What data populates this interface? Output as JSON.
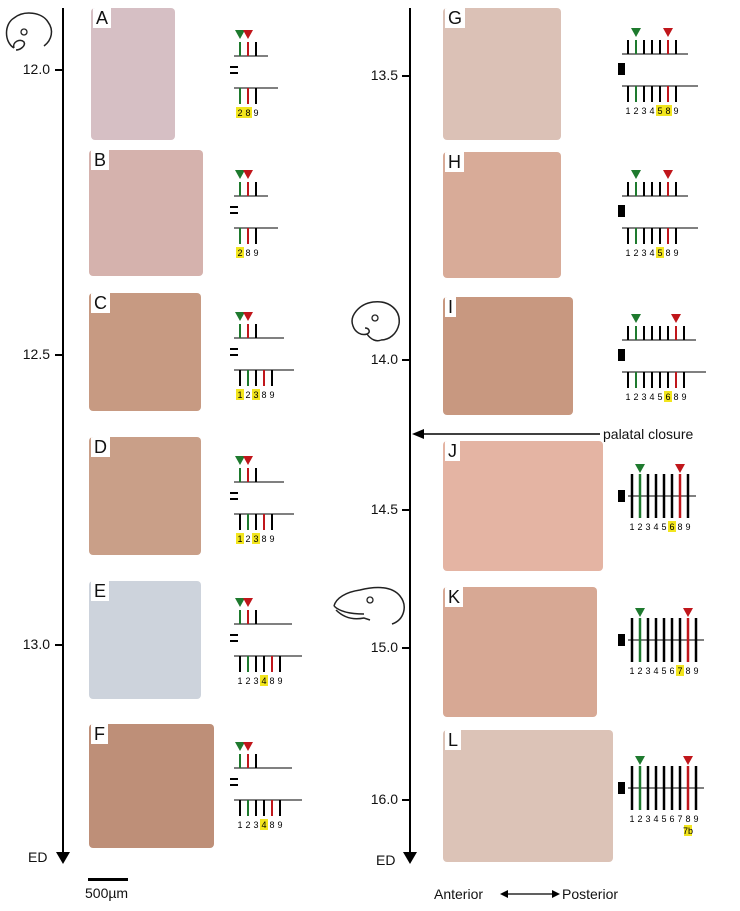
{
  "timeline_left": {
    "ticks": [
      "12.0",
      "12.5",
      "13.0"
    ],
    "end_label": "ED"
  },
  "timeline_right": {
    "ticks": [
      "13.5",
      "14.0",
      "14.5",
      "15.0",
      "16.0"
    ],
    "end_label": "ED"
  },
  "panels": [
    {
      "letter": "A",
      "numbers": [
        {
          "t": "2",
          "hl": true,
          "c": "green"
        },
        {
          "t": "8",
          "hl": true,
          "c": "red"
        },
        {
          "t": "9",
          "hl": false,
          "c": "black"
        }
      ]
    },
    {
      "letter": "B",
      "numbers": [
        {
          "t": "2",
          "hl": true,
          "c": "green"
        },
        {
          "t": "8",
          "hl": false,
          "c": "red"
        },
        {
          "t": "9",
          "hl": false,
          "c": "black"
        }
      ]
    },
    {
      "letter": "C",
      "numbers": [
        {
          "t": "1",
          "hl": true,
          "c": "black"
        },
        {
          "t": "2",
          "hl": false,
          "c": "green"
        },
        {
          "t": "3",
          "hl": true,
          "c": "black"
        },
        {
          "t": "8",
          "hl": false,
          "c": "red"
        },
        {
          "t": "9",
          "hl": false,
          "c": "black"
        }
      ]
    },
    {
      "letter": "D",
      "numbers": [
        {
          "t": "1",
          "hl": true,
          "c": "black"
        },
        {
          "t": "2",
          "hl": false,
          "c": "green"
        },
        {
          "t": "3",
          "hl": true,
          "c": "black"
        },
        {
          "t": "8",
          "hl": false,
          "c": "red"
        },
        {
          "t": "9",
          "hl": false,
          "c": "black"
        }
      ]
    },
    {
      "letter": "E",
      "numbers": [
        {
          "t": "1",
          "hl": false,
          "c": "black"
        },
        {
          "t": "2",
          "hl": false,
          "c": "green"
        },
        {
          "t": "3",
          "hl": false,
          "c": "black"
        },
        {
          "t": "4",
          "hl": true,
          "c": "black"
        },
        {
          "t": "8",
          "hl": false,
          "c": "red"
        },
        {
          "t": "9",
          "hl": false,
          "c": "black"
        }
      ]
    },
    {
      "letter": "F",
      "numbers": [
        {
          "t": "1",
          "hl": false,
          "c": "black"
        },
        {
          "t": "2",
          "hl": false,
          "c": "green"
        },
        {
          "t": "3",
          "hl": false,
          "c": "black"
        },
        {
          "t": "4",
          "hl": true,
          "c": "black"
        },
        {
          "t": "8",
          "hl": false,
          "c": "red"
        },
        {
          "t": "9",
          "hl": false,
          "c": "black"
        }
      ]
    },
    {
      "letter": "G",
      "numbers": [
        {
          "t": "1",
          "hl": false,
          "c": "black"
        },
        {
          "t": "2",
          "hl": false,
          "c": "green"
        },
        {
          "t": "3",
          "hl": false,
          "c": "black"
        },
        {
          "t": "4",
          "hl": false,
          "c": "black"
        },
        {
          "t": "5",
          "hl": true,
          "c": "black"
        },
        {
          "t": "8",
          "hl": true,
          "c": "red"
        },
        {
          "t": "9",
          "hl": false,
          "c": "black"
        }
      ]
    },
    {
      "letter": "H",
      "numbers": [
        {
          "t": "1",
          "hl": false,
          "c": "black"
        },
        {
          "t": "2",
          "hl": false,
          "c": "green"
        },
        {
          "t": "3",
          "hl": false,
          "c": "black"
        },
        {
          "t": "4",
          "hl": false,
          "c": "black"
        },
        {
          "t": "5",
          "hl": true,
          "c": "black"
        },
        {
          "t": "8",
          "hl": false,
          "c": "red"
        },
        {
          "t": "9",
          "hl": false,
          "c": "black"
        }
      ]
    },
    {
      "letter": "I",
      "numbers": [
        {
          "t": "1",
          "hl": false,
          "c": "black"
        },
        {
          "t": "2",
          "hl": false,
          "c": "green"
        },
        {
          "t": "3",
          "hl": false,
          "c": "black"
        },
        {
          "t": "4",
          "hl": false,
          "c": "black"
        },
        {
          "t": "5",
          "hl": false,
          "c": "black"
        },
        {
          "t": "6",
          "hl": true,
          "c": "black"
        },
        {
          "t": "8",
          "hl": false,
          "c": "red"
        },
        {
          "t": "9",
          "hl": false,
          "c": "black"
        }
      ]
    },
    {
      "letter": "J",
      "numbers": [
        {
          "t": "1",
          "hl": false,
          "c": "black"
        },
        {
          "t": "2",
          "hl": false,
          "c": "green"
        },
        {
          "t": "3",
          "hl": false,
          "c": "black"
        },
        {
          "t": "4",
          "hl": false,
          "c": "black"
        },
        {
          "t": "5",
          "hl": false,
          "c": "black"
        },
        {
          "t": "6",
          "hl": true,
          "c": "black"
        },
        {
          "t": "8",
          "hl": false,
          "c": "red"
        },
        {
          "t": "9",
          "hl": false,
          "c": "black"
        }
      ]
    },
    {
      "letter": "K",
      "numbers": [
        {
          "t": "1",
          "hl": false,
          "c": "black"
        },
        {
          "t": "2",
          "hl": false,
          "c": "green"
        },
        {
          "t": "3",
          "hl": false,
          "c": "black"
        },
        {
          "t": "4",
          "hl": false,
          "c": "black"
        },
        {
          "t": "5",
          "hl": false,
          "c": "black"
        },
        {
          "t": "6",
          "hl": false,
          "c": "black"
        },
        {
          "t": "7",
          "hl": true,
          "c": "black"
        },
        {
          "t": "8",
          "hl": false,
          "c": "red"
        },
        {
          "t": "9",
          "hl": false,
          "c": "black"
        }
      ]
    },
    {
      "letter": "L",
      "numbers": [
        {
          "t": "1",
          "hl": false,
          "c": "black"
        },
        {
          "t": "2",
          "hl": false,
          "c": "green"
        },
        {
          "t": "3",
          "hl": false,
          "c": "black"
        },
        {
          "t": "4",
          "hl": false,
          "c": "black"
        },
        {
          "t": "5",
          "hl": false,
          "c": "black"
        },
        {
          "t": "6",
          "hl": false,
          "c": "black"
        },
        {
          "t": "7",
          "hl": false,
          "c": "black"
        },
        {
          "t": "8",
          "hl": false,
          "c": "red"
        },
        {
          "t": "9",
          "hl": false,
          "c": "black"
        }
      ],
      "extra": "7b"
    }
  ],
  "callout": "palatal closure",
  "scale_bar": "500µm",
  "direction": {
    "left": "Anterior",
    "right": "Posterior"
  },
  "colors": {
    "green": "#1e7a2e",
    "red": "#c0161b",
    "highlight": "#f2e51e",
    "tissue": "#c9a08d",
    "stain": "#3a2a33"
  }
}
